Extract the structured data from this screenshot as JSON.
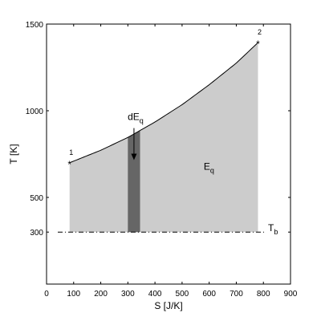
{
  "chart_data": {
    "type": "area",
    "xlabel": "S [J/K]",
    "ylabel": "T [K]",
    "xlim": [
      0,
      900
    ],
    "ylim": [
      0,
      1500
    ],
    "grid": false,
    "x_ticks": [
      0,
      100,
      200,
      300,
      400,
      500,
      600,
      700,
      800,
      900
    ],
    "x_tick_labels": [
      "0",
      "100",
      "200",
      "300",
      "400",
      "500",
      "600",
      "700",
      "800",
      "900"
    ],
    "y_ticks": [
      300,
      500,
      1000,
      1500
    ],
    "y_tick_labels": [
      "300",
      "500",
      "1000",
      "1500"
    ],
    "curve": {
      "x": [
        85,
        200,
        300,
        400,
        500,
        600,
        700,
        780
      ],
      "y": [
        700,
        772,
        846,
        935,
        1035,
        1150,
        1275,
        1393
      ]
    },
    "baseline": {
      "y": 300,
      "label_main": "T",
      "label_sub": "b",
      "style": "dash-dot"
    },
    "area": {
      "label_main": "E",
      "label_sub": "q",
      "x": 580,
      "y": 660,
      "color": "#cccccc"
    },
    "strip": {
      "x0": 300,
      "x1": 345,
      "label_main": "dE",
      "label_sub": "q",
      "color": "#666666",
      "arrow_from_y": 900,
      "arrow_to_y": 715
    },
    "points": [
      {
        "label": "1",
        "x": 85,
        "y": 700
      },
      {
        "label": "2",
        "x": 780,
        "y": 1393
      }
    ]
  }
}
